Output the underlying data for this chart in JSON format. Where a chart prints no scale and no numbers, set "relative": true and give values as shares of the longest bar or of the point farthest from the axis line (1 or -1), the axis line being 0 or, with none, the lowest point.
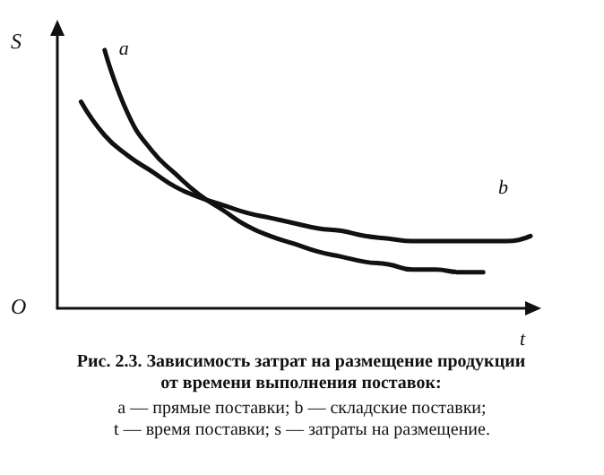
{
  "chart_data": {
    "type": "line",
    "relative": true,
    "title": "Рис. 2.3. Зависимость затрат на размещение продукции от времени выполнения поставок:",
    "xlabel": "t",
    "ylabel": "S",
    "annotations": [
      "O",
      "a — прямые поставки; b — складские поставки;",
      "t — время поставки; s — затраты на размещение."
    ],
    "categories": [
      null,
      null,
      null,
      null,
      null,
      null,
      null,
      null,
      null,
      null,
      null,
      null,
      null,
      null,
      null,
      null,
      null,
      null,
      null,
      null,
      null
    ],
    "series": [
      {
        "name": "a",
        "color": "#111111",
        "values": [
          null,
          null,
          1,
          0.75,
          0.61,
          0.52,
          0.44,
          0.38,
          0.32,
          0.28,
          0.25,
          0.22,
          0.2,
          0.18,
          0.17,
          0.15,
          0.15,
          0.14,
          0.14,
          null,
          null
        ]
      },
      {
        "name": "b",
        "color": "#111111",
        "values": [
          null,
          0.8,
          0.67,
          0.59,
          0.53,
          0.47,
          0.43,
          0.4,
          0.37,
          0.35,
          0.33,
          0.31,
          0.3,
          0.28,
          0.27,
          0.26,
          0.26,
          0.26,
          0.26,
          0.26,
          0.28
        ]
      }
    ],
    "grid": false,
    "legend": false
  }
}
